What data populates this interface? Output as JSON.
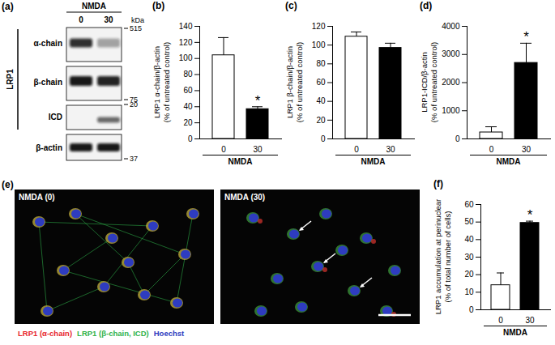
{
  "chart_data": [
    {
      "type": "bar",
      "title": "(b)",
      "y_label": "LRP1 α-chain/β-actin\n(% of untreated control)",
      "x_label": "NMDA",
      "categories": [
        "0",
        "30"
      ],
      "values": [
        104,
        37
      ],
      "errors": [
        22,
        3
      ],
      "colors": [
        "#ffffff",
        "#000000"
      ],
      "ylim": [
        0,
        140
      ],
      "yticks": [
        0,
        20,
        40,
        60,
        80,
        100,
        120,
        140
      ],
      "annotations": [
        {
          "category": "30",
          "text": "*"
        }
      ]
    },
    {
      "type": "bar",
      "title": "(c)",
      "y_label": "LRP1 β-chain/β-actin\n(% of untreated control)",
      "x_label": "NMDA",
      "categories": [
        "0",
        "30"
      ],
      "values": [
        109,
        97
      ],
      "errors": [
        5,
        5
      ],
      "colors": [
        "#ffffff",
        "#000000"
      ],
      "ylim": [
        0,
        120
      ],
      "yticks": [
        0,
        20,
        40,
        60,
        80,
        100,
        120
      ]
    },
    {
      "type": "bar",
      "title": "(d)",
      "y_label": "LRP1-ICD/β-actin\n(% of untreated control)",
      "x_label": "NMDA",
      "categories": [
        "0",
        "30"
      ],
      "values": [
        230,
        2700
      ],
      "errors": [
        200,
        700
      ],
      "colors": [
        "#ffffff",
        "#000000"
      ],
      "ylim": [
        0,
        4000
      ],
      "yticks": [
        0,
        1000,
        2000,
        3000,
        4000
      ],
      "annotations": [
        {
          "category": "30",
          "text": "*"
        }
      ]
    },
    {
      "type": "bar",
      "title": "(f)",
      "y_label": "LRP1 accumulation at perinuclear\n(% of total number of cells)",
      "x_label": "NMDA",
      "categories": [
        "0",
        "30"
      ],
      "values": [
        14,
        49.5
      ],
      "errors": [
        7,
        1
      ],
      "colors": [
        "#ffffff",
        "#000000"
      ],
      "ylim": [
        0,
        60
      ],
      "yticks": [
        0,
        10,
        20,
        30,
        40,
        50,
        60
      ],
      "annotations": [
        {
          "category": "30",
          "text": "*"
        }
      ]
    }
  ],
  "blot": {
    "title": "(a)",
    "treatment": "NMDA",
    "lanes": [
      "0",
      "30"
    ],
    "group": "LRP1",
    "rows": [
      "α-chain",
      "β-chain",
      "ICD",
      "β-actin"
    ],
    "unit": "kDa",
    "markers": [
      515,
      75,
      20,
      37
    ]
  },
  "micrograph": {
    "title": "(e)",
    "panels": [
      "NMDA (0)",
      "NMDA (30)"
    ],
    "channels": [
      {
        "text": "LRP1 (α-chain)",
        "color": "#e8262b"
      },
      {
        "text": "LRP1 (β-chain, ICD)",
        "color": "#2fb34a"
      },
      {
        "text": "Hoechst",
        "color": "#2e3cc0"
      }
    ]
  }
}
